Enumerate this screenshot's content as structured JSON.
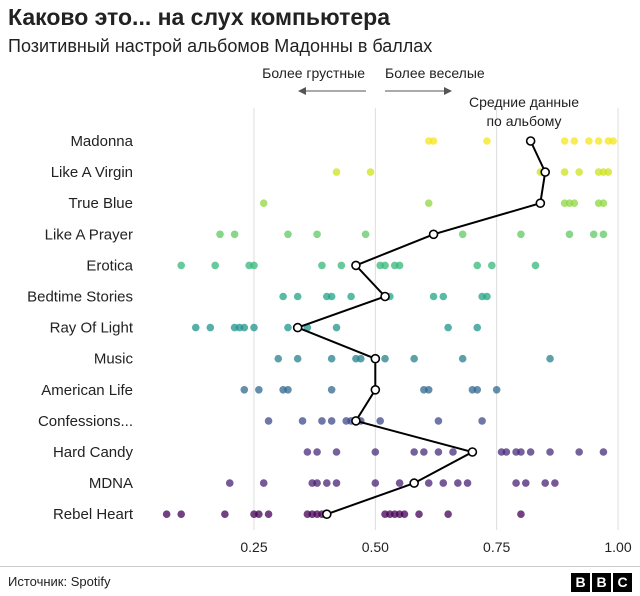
{
  "header": {
    "title": "Каково это... на слух компьютера",
    "subtitle": "Позитивный настрой альбомов Мадонны в баллах"
  },
  "footer": {
    "source": "Источник: Spotify",
    "logo_letters": [
      "B",
      "B",
      "C"
    ]
  },
  "chart_data": {
    "type": "scatter",
    "title": "",
    "xlabel": "",
    "ylabel": "",
    "xlim": [
      0.09,
      1.0
    ],
    "x_ticks": [
      0.25,
      0.5,
      0.75,
      1.0
    ],
    "x_tick_labels": [
      "0.25",
      "0.50",
      "0.75",
      "1.00"
    ],
    "grid": "vertical",
    "annotations": {
      "sadder": "Более грустные",
      "happier": "Более веселые",
      "average_line1": "Средние данные",
      "average_line2": "по альбому"
    },
    "categories": [
      "Madonna",
      "Like A Virgin",
      "True Blue",
      "Like A Prayer",
      "Erotica",
      "Bedtime Stories",
      "Ray Of Light",
      "Music",
      "American Life",
      "Confessions...",
      "Hard Candy",
      "MDNA",
      "Rebel Heart"
    ],
    "colors": [
      "#f5e51b",
      "#cde11d",
      "#8fd744",
      "#5ec962",
      "#35b779",
      "#20a486",
      "#1f948c",
      "#26828e",
      "#31688e",
      "#3e4a89",
      "#472d7b",
      "#482173",
      "#440154"
    ],
    "tracks": [
      [
        0.61,
        0.62,
        0.73,
        0.89,
        0.91,
        0.94,
        0.96,
        0.98,
        0.99
      ],
      [
        0.42,
        0.49,
        0.84,
        0.89,
        0.92,
        0.96,
        0.97,
        0.98
      ],
      [
        0.27,
        0.61,
        0.89,
        0.9,
        0.91,
        0.96,
        0.97
      ],
      [
        0.18,
        0.21,
        0.32,
        0.38,
        0.48,
        0.62,
        0.68,
        0.8,
        0.9,
        0.95,
        0.97
      ],
      [
        0.1,
        0.17,
        0.24,
        0.25,
        0.39,
        0.43,
        0.51,
        0.52,
        0.54,
        0.55,
        0.71,
        0.74,
        0.83
      ],
      [
        0.31,
        0.34,
        0.4,
        0.41,
        0.45,
        0.52,
        0.53,
        0.62,
        0.64,
        0.72,
        0.73
      ],
      [
        0.13,
        0.16,
        0.21,
        0.22,
        0.23,
        0.25,
        0.32,
        0.36,
        0.42,
        0.65,
        0.71
      ],
      [
        0.3,
        0.34,
        0.41,
        0.46,
        0.47,
        0.52,
        0.58,
        0.68,
        0.86
      ],
      [
        0.23,
        0.26,
        0.31,
        0.32,
        0.41,
        0.6,
        0.61,
        0.7,
        0.71,
        0.75
      ],
      [
        0.28,
        0.35,
        0.39,
        0.41,
        0.44,
        0.45,
        0.47,
        0.51,
        0.63,
        0.72
      ],
      [
        0.36,
        0.38,
        0.42,
        0.5,
        0.58,
        0.6,
        0.63,
        0.66,
        0.76,
        0.77,
        0.79,
        0.8,
        0.82,
        0.86,
        0.92,
        0.97
      ],
      [
        0.2,
        0.27,
        0.37,
        0.38,
        0.4,
        0.42,
        0.5,
        0.55,
        0.61,
        0.64,
        0.67,
        0.69,
        0.79,
        0.81,
        0.85,
        0.87
      ],
      [
        0.07,
        0.1,
        0.19,
        0.25,
        0.26,
        0.28,
        0.36,
        0.37,
        0.38,
        0.39,
        0.4,
        0.52,
        0.53,
        0.54,
        0.55,
        0.56,
        0.59,
        0.65,
        0.8
      ]
    ],
    "averages": [
      0.82,
      0.85,
      0.84,
      0.62,
      0.46,
      0.52,
      0.34,
      0.5,
      0.5,
      0.46,
      0.7,
      0.58,
      0.4
    ]
  }
}
